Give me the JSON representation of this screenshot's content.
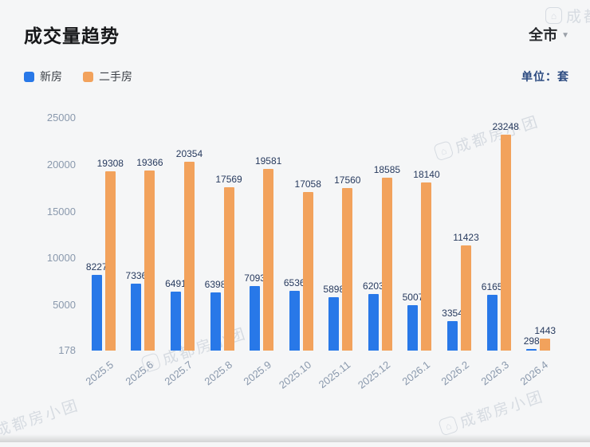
{
  "header": {
    "title": "成交量趋势",
    "scope": "全市",
    "unit_label": "单位：套"
  },
  "legend": {
    "items": [
      {
        "label": "新房",
        "color": "#2878e8"
      },
      {
        "label": "二手房",
        "color": "#f2a25c"
      }
    ]
  },
  "watermark": {
    "text": "成都房小团",
    "icon": "house-icon"
  },
  "chart_data": {
    "type": "bar",
    "title": "成交量趋势",
    "xlabel": "",
    "ylabel": "套",
    "categories": [
      "2025.5",
      "2025.6",
      "2025.7",
      "2025.8",
      "2025.9",
      "2025.10",
      "2025.11",
      "2025.12",
      "2026.1",
      "2026.2",
      "2026.3",
      "2026.4"
    ],
    "series": [
      {
        "name": "新房",
        "color": "#2878e8",
        "values": [
          8227,
          7336,
          6491,
          6398,
          7093,
          6536,
          5898,
          6203,
          5007,
          3354,
          6165,
          298
        ]
      },
      {
        "name": "二手房",
        "color": "#f2a25c",
        "values": [
          19308,
          19366,
          20354,
          17569,
          19581,
          17058,
          17560,
          18585,
          18140,
          11423,
          23248,
          1443
        ]
      }
    ],
    "y_ticks": [
      25000,
      20000,
      15000,
      10000,
      5000,
      178
    ],
    "ylim": [
      178,
      25000
    ],
    "grid": false,
    "legend_position": "top-left",
    "value_labels": true
  }
}
